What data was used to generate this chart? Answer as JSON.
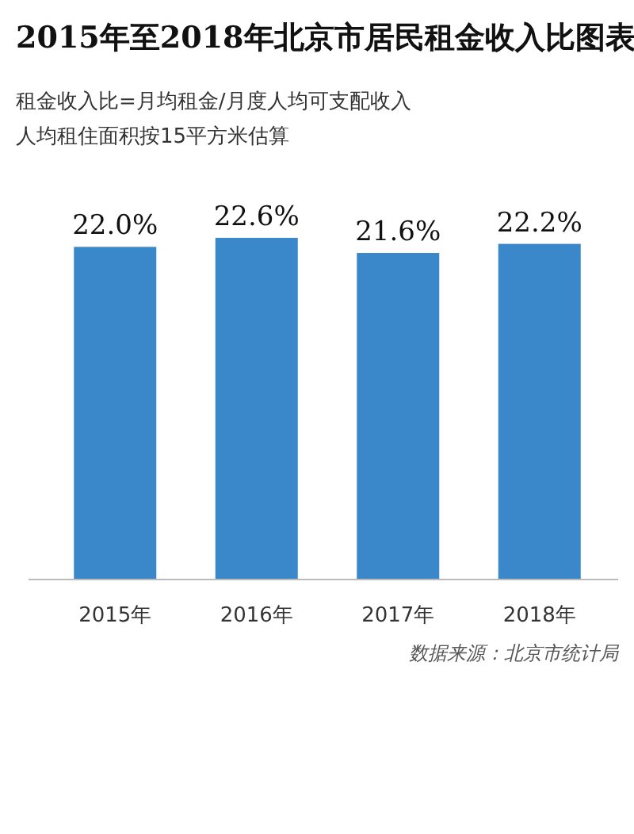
{
  "chart_data": {
    "type": "bar",
    "title": "2015年至2018年北京市居民租金收入比图表",
    "subtitle": "租金收入比=月均租金/月度人均可支配收入",
    "annotations": [
      "人均租住面积按15平方米估算",
      "数据来源：北京市统计局"
    ],
    "categories": [
      "2015年",
      "2016年",
      "2017年",
      "2018年"
    ],
    "values": [
      22.0,
      22.6,
      21.6,
      22.2
    ],
    "value_labels": [
      "22.0%",
      "22.6%",
      "21.6%",
      "22.2%"
    ],
    "color": "#3a87c9"
  }
}
